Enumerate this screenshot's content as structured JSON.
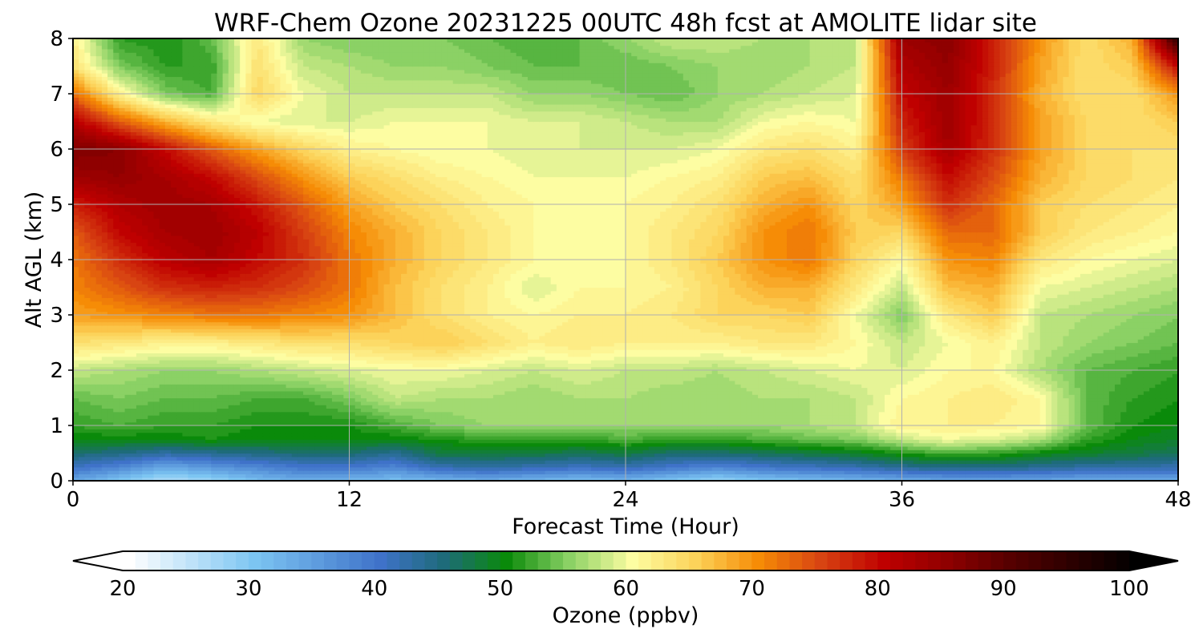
{
  "chart_data": {
    "type": "heatmap",
    "title": "WRF-Chem Ozone  20231225 00UTC 48h fcst at AMOLITE lidar site",
    "xlabel": "Forecast Time (Hour)",
    "ylabel": "Alt AGL (km)",
    "xlim": [
      0,
      48
    ],
    "ylim": [
      0,
      8
    ],
    "xticks": [
      0,
      12,
      24,
      36,
      48
    ],
    "yticks": [
      0,
      1,
      2,
      3,
      4,
      5,
      6,
      7,
      8
    ],
    "grid": true,
    "x_hours": [
      0,
      2,
      4,
      6,
      8,
      10,
      12,
      14,
      16,
      18,
      20,
      22,
      24,
      26,
      28,
      30,
      32,
      34,
      36,
      38,
      40,
      42,
      44,
      46,
      48
    ],
    "z_km": [
      0,
      0.25,
      0.5,
      0.75,
      1,
      1.5,
      2,
      2.5,
      3,
      3.5,
      4,
      4.5,
      5,
      5.5,
      6,
      6.5,
      7,
      7.5,
      8
    ],
    "values_ppbv": [
      [
        34,
        30,
        26,
        28,
        31,
        33,
        32,
        31,
        32,
        33,
        32,
        31,
        32,
        30,
        28,
        30,
        31,
        32,
        33,
        34,
        34,
        34,
        33,
        33,
        34
      ],
      [
        41,
        38,
        34,
        36,
        38,
        40,
        40,
        38,
        42,
        43,
        42,
        41,
        42,
        40,
        38,
        40,
        41,
        42,
        44,
        45,
        45,
        44,
        43,
        43,
        42
      ],
      [
        46,
        45,
        43,
        44,
        45,
        46,
        46,
        44,
        48,
        48,
        48,
        47,
        48,
        46,
        46,
        47,
        48,
        49,
        51,
        53,
        52,
        50,
        49,
        48,
        47
      ],
      [
        50,
        50,
        50,
        51,
        50,
        50,
        50,
        50,
        51,
        52,
        52,
        52,
        53,
        52,
        52,
        53,
        54,
        55,
        58,
        60,
        59,
        57,
        52,
        50,
        49
      ],
      [
        52,
        53,
        52,
        52,
        51,
        51,
        51,
        53,
        55,
        56,
        56,
        56,
        56,
        56,
        56,
        56,
        57,
        58,
        62,
        62,
        62,
        61,
        54,
        51,
        50
      ],
      [
        54,
        55,
        54,
        54,
        53,
        53,
        55,
        58,
        57,
        57,
        56,
        57,
        57,
        56,
        56,
        57,
        57,
        58,
        61,
        62,
        63,
        61,
        54,
        52,
        51
      ],
      [
        58,
        57,
        56,
        56,
        57,
        58,
        59,
        60,
        60,
        59,
        58,
        59,
        58,
        58,
        57,
        58,
        59,
        60,
        59,
        61,
        61,
        57,
        54,
        53,
        52
      ],
      [
        64,
        63,
        62,
        62,
        63,
        64,
        64,
        65,
        66,
        64,
        62,
        63,
        62,
        62,
        62,
        63,
        63,
        61,
        58,
        60,
        62,
        58,
        56,
        55,
        54
      ],
      [
        69,
        70,
        71,
        72,
        72,
        71,
        70,
        67,
        64,
        62,
        61,
        62,
        62,
        63,
        65,
        65,
        66,
        60,
        55,
        63,
        66,
        58,
        57,
        56,
        55
      ],
      [
        71,
        74,
        77,
        78,
        77,
        75,
        72,
        67,
        64,
        62,
        59,
        61,
        61,
        62,
        65,
        68,
        68,
        63,
        58,
        67,
        68,
        60,
        59,
        58,
        57
      ],
      [
        72,
        77,
        81,
        83,
        80,
        77,
        72,
        68,
        65,
        63,
        61,
        60,
        61,
        63,
        66,
        70,
        72,
        65,
        61,
        70,
        71,
        63,
        61,
        60,
        59
      ],
      [
        74,
        80,
        83,
        84,
        81,
        76,
        71,
        68,
        65,
        63,
        61,
        60,
        61,
        63,
        65,
        70,
        72,
        66,
        65,
        73,
        73,
        66,
        63,
        62,
        61
      ],
      [
        78,
        82,
        84,
        83,
        79,
        74,
        69,
        66,
        64,
        62,
        61,
        60,
        61,
        62,
        64,
        68,
        70,
        65,
        69,
        77,
        73,
        66,
        64,
        63,
        62
      ],
      [
        84,
        85,
        83,
        80,
        75,
        70,
        66,
        64,
        62,
        61,
        60,
        60,
        60,
        61,
        62,
        66,
        67,
        64,
        72,
        80,
        75,
        68,
        65,
        64,
        63
      ],
      [
        87,
        86,
        80,
        74,
        69,
        65,
        62,
        61,
        60,
        60,
        59,
        59,
        59,
        59,
        60,
        63,
        64,
        62,
        76,
        83,
        77,
        69,
        65,
        64,
        64
      ],
      [
        82,
        74,
        68,
        63,
        60,
        59,
        59,
        60,
        60,
        60,
        59,
        59,
        58,
        57,
        57,
        60,
        61,
        60,
        78,
        84,
        77,
        69,
        65,
        64,
        66
      ],
      [
        73,
        62,
        55,
        53,
        65,
        60,
        58,
        58,
        58,
        58,
        56,
        56,
        55,
        54,
        56,
        57,
        58,
        59,
        80,
        84,
        77,
        68,
        64,
        64,
        70
      ],
      [
        64,
        55,
        52,
        52,
        64,
        58,
        57,
        56,
        56,
        55,
        54,
        54,
        54,
        55,
        56,
        56,
        57,
        58,
        82,
        85,
        78,
        69,
        64,
        66,
        80
      ],
      [
        62,
        52,
        51,
        54,
        63,
        56,
        55,
        55,
        55,
        54,
        53,
        54,
        56,
        58,
        58,
        57,
        57,
        58,
        84,
        86,
        78,
        70,
        64,
        68,
        95
      ]
    ],
    "colorbar": {
      "label": "Ozone  (ppbv)",
      "min": 20,
      "max": 100,
      "step": 1,
      "ticks": [
        "20",
        "30",
        "40",
        "50",
        "60",
        "70",
        "80",
        "90",
        "100"
      ],
      "extend": "both",
      "color_stops": [
        [
          20,
          "#ffffff"
        ],
        [
          30,
          "#7cc5f2"
        ],
        [
          40,
          "#3f72c9"
        ],
        [
          45,
          "#1e6b7a"
        ],
        [
          50,
          "#0a8a0a"
        ],
        [
          55,
          "#8bd165"
        ],
        [
          60,
          "#fdfda2"
        ],
        [
          65,
          "#fcd35a"
        ],
        [
          70,
          "#f68c06"
        ],
        [
          75,
          "#d84412"
        ],
        [
          80,
          "#bf0000"
        ],
        [
          85,
          "#8f0000"
        ],
        [
          90,
          "#560000"
        ],
        [
          100,
          "#000000"
        ]
      ]
    }
  }
}
